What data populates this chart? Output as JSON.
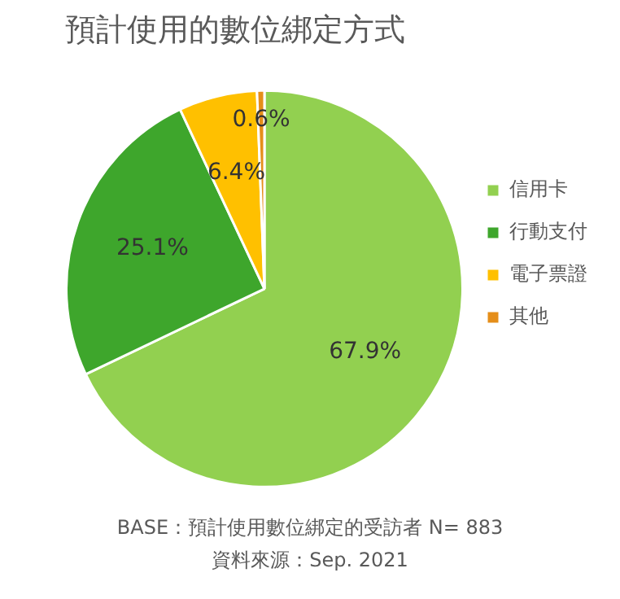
{
  "chart_data": {
    "type": "pie",
    "title": "預計使用的數位綁定方式",
    "categories": [
      "信用卡",
      "行動支付",
      "電子票證",
      "其他"
    ],
    "values": [
      67.9,
      25.1,
      6.4,
      0.6
    ],
    "colors": [
      "#92d050",
      "#3ea62c",
      "#ffc000",
      "#e58e1a"
    ],
    "value_labels": [
      "67.9%",
      "25.1%",
      "6.4%",
      "0.6%"
    ],
    "legend": "right",
    "annotations": [
      "BASE：預計使用數位綁定的受訪者 N= 883",
      "資料來源：Sep. 2021"
    ]
  }
}
